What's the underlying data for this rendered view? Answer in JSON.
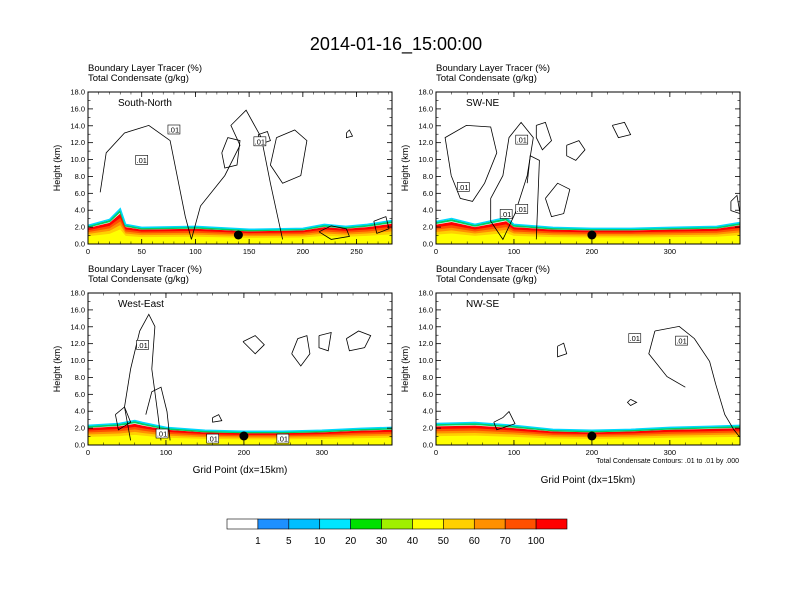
{
  "chart_data": {
    "type": "contour-filled",
    "title": "2014-01-16_15:00:00",
    "field_title": "Boundary Layer Tracer   (%)",
    "contour_title": "Total Condensate   (g/kg)",
    "ylabel": "Height (km)",
    "xlabel": "Grid Point (dx=15km)",
    "ylim": [
      0,
      18
    ],
    "yticks": [
      "0.0",
      "2.0",
      "4.0",
      "6.0",
      "8.0",
      "10.0",
      "12.0",
      "14.0",
      "16.0",
      "18.0"
    ],
    "contour_note": "Total Condensate Contours: .01 to .01 by .000",
    "colorbar": {
      "labels": [
        "1",
        "5",
        "10",
        "20",
        "30",
        "40",
        "50",
        "60",
        "70",
        "100"
      ],
      "colors": [
        "#ffffff",
        "#1e90ff",
        "#00bfff",
        "#00e5ff",
        "#00e070",
        "#00e000",
        "#a0f000",
        "#ffff00",
        "#ffd000",
        "#ff9000",
        "#ff5000",
        "#ff0000"
      ]
    },
    "panels": [
      {
        "name": "South-North",
        "xlim": [
          0,
          283
        ],
        "xticks": [
          "0",
          "50",
          "100",
          "150",
          "200",
          "250"
        ],
        "xtick_values": [
          0,
          50,
          100,
          150,
          200,
          250
        ],
        "marker_x": 140,
        "contour_label": ".01",
        "contour_label_positions": [
          [
            50,
            9.9
          ],
          [
            80,
            13.5
          ],
          [
            160,
            12.1
          ]
        ],
        "pbl_height_profile": [
          [
            0,
            1.9
          ],
          [
            20,
            2.5
          ],
          [
            30,
            3.6
          ],
          [
            35,
            2.0
          ],
          [
            50,
            1.7
          ],
          [
            100,
            1.8
          ],
          [
            150,
            1.5
          ],
          [
            200,
            1.6
          ],
          [
            220,
            2.0
          ],
          [
            240,
            1.8
          ],
          [
            260,
            2.0
          ],
          [
            283,
            2.4
          ]
        ]
      },
      {
        "name": "SW-NE",
        "xlim": [
          0,
          390
        ],
        "xticks": [
          "0",
          "100",
          "200",
          "300"
        ],
        "xtick_values": [
          0,
          100,
          200,
          300
        ],
        "marker_x": 200,
        "contour_label": ".01",
        "contour_label_positions": [
          [
            110,
            12.3
          ],
          [
            35,
            6.7
          ],
          [
            90,
            3.5
          ],
          [
            110,
            4.1
          ]
        ],
        "pbl_height_profile": [
          [
            0,
            2.3
          ],
          [
            20,
            2.6
          ],
          [
            50,
            2.0
          ],
          [
            90,
            2.7
          ],
          [
            100,
            2.0
          ],
          [
            150,
            1.7
          ],
          [
            200,
            1.6
          ],
          [
            250,
            1.6
          ],
          [
            300,
            1.7
          ],
          [
            360,
            1.8
          ],
          [
            390,
            2.2
          ]
        ]
      },
      {
        "name": "West-East",
        "xlim": [
          0,
          390
        ],
        "xticks": [
          "0",
          "100",
          "200",
          "300"
        ],
        "xtick_values": [
          0,
          100,
          200,
          300
        ],
        "marker_x": 200,
        "contour_label": ".01",
        "contour_label_positions": [
          [
            70,
            11.8
          ],
          [
            95,
            1.3
          ],
          [
            160,
            0.7
          ],
          [
            250,
            0.7
          ]
        ],
        "pbl_height_profile": [
          [
            0,
            2.0
          ],
          [
            40,
            2.2
          ],
          [
            60,
            2.5
          ],
          [
            70,
            2.3
          ],
          [
            100,
            1.8
          ],
          [
            150,
            1.5
          ],
          [
            200,
            1.4
          ],
          [
            250,
            1.4
          ],
          [
            300,
            1.5
          ],
          [
            350,
            1.7
          ],
          [
            390,
            1.8
          ]
        ]
      },
      {
        "name": "NW-SE",
        "xlim": [
          0,
          390
        ],
        "xticks": [
          "0",
          "100",
          "200",
          "300"
        ],
        "xtick_values": [
          0,
          100,
          200,
          300
        ],
        "marker_x": 200,
        "contour_label": ".01",
        "contour_label_positions": [
          [
            255,
            12.6
          ],
          [
            315,
            12.3
          ]
        ],
        "pbl_height_profile": [
          [
            0,
            2.2
          ],
          [
            50,
            2.3
          ],
          [
            100,
            2.0
          ],
          [
            150,
            1.6
          ],
          [
            200,
            1.5
          ],
          [
            250,
            1.6
          ],
          [
            300,
            1.8
          ],
          [
            350,
            1.9
          ],
          [
            390,
            2.0
          ]
        ]
      }
    ]
  }
}
